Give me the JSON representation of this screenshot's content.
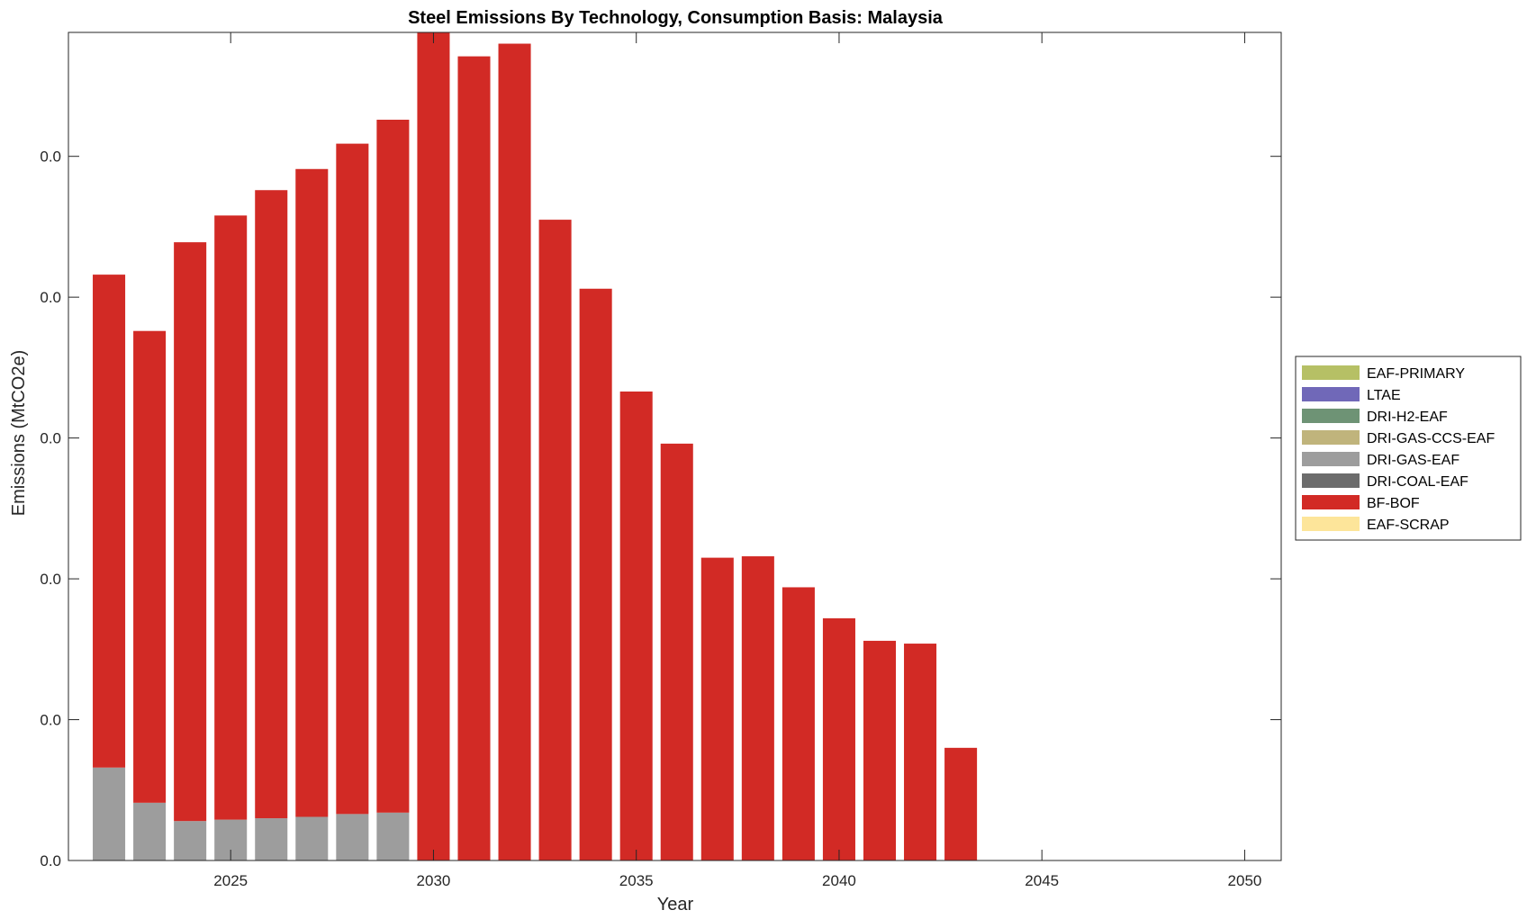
{
  "chart_data": {
    "type": "bar",
    "stacked": true,
    "title": "Steel Emissions By Technology, Consumption Basis: Malaysia",
    "xlabel": "Year",
    "ylabel": "Emissions (MtCO2e)",
    "x": [
      2022,
      2023,
      2024,
      2025,
      2026,
      2027,
      2028,
      2029,
      2030,
      2031,
      2032,
      2033,
      2034,
      2035,
      2036,
      2037,
      2038,
      2039,
      2040,
      2041,
      2042,
      2043
    ],
    "xlim": [
      2021,
      2050.9
    ],
    "xticks": [
      2025,
      2030,
      2035,
      2040,
      2045,
      2050
    ],
    "ylim": [
      0,
      0.0588
    ],
    "yticks": [
      0,
      0.01,
      0.02,
      0.03,
      0.04,
      0.05
    ],
    "ytick_labels": [
      "0.0",
      "0.0",
      "0.0",
      "0.0",
      "0.0",
      "0.0"
    ],
    "grid": false,
    "legend_position": "right",
    "series": [
      {
        "name": "EAF-PRIMARY",
        "color": "#b6c065",
        "values": [
          0,
          0,
          0,
          0,
          0,
          0,
          0,
          0,
          0,
          0,
          0,
          0,
          0,
          0,
          0,
          0,
          0,
          0,
          0,
          0,
          0,
          0
        ]
      },
      {
        "name": "LTAE",
        "color": "#7068b8",
        "values": [
          0,
          0,
          0,
          0,
          0,
          0,
          0,
          0,
          0,
          0,
          0,
          0,
          0,
          0,
          0,
          0,
          0,
          0,
          0,
          0,
          0,
          0
        ]
      },
      {
        "name": "DRI-H2-EAF",
        "color": "#6e9375",
        "values": [
          0,
          0,
          0,
          0,
          0,
          0,
          0,
          0,
          0,
          0,
          0,
          0,
          0,
          0,
          0,
          0,
          0,
          0,
          0,
          0,
          0,
          0
        ]
      },
      {
        "name": "DRI-GAS-CCS-EAF",
        "color": "#c0b47c",
        "values": [
          0,
          0,
          0,
          0,
          0,
          0,
          0,
          0,
          0,
          0,
          0,
          0,
          0,
          0,
          0,
          0,
          0,
          0,
          0,
          0,
          0,
          0
        ]
      },
      {
        "name": "DRI-GAS-EAF",
        "color": "#9d9d9d",
        "values": [
          0.0066,
          0.0041,
          0.0028,
          0.0029,
          0.003,
          0.0031,
          0.0033,
          0.0034,
          0,
          0,
          0,
          0,
          0,
          0,
          0,
          0,
          0,
          0,
          0,
          0,
          0,
          0
        ]
      },
      {
        "name": "DRI-COAL-EAF",
        "color": "#6c6c6c",
        "values": [
          0,
          0,
          0,
          0,
          0,
          0,
          0,
          0,
          0,
          0,
          0,
          0,
          0,
          0,
          0,
          0,
          0,
          0,
          0,
          0,
          0,
          0
        ]
      },
      {
        "name": "BF-BOF",
        "color": "#d22a25",
        "values": [
          0.035,
          0.0335,
          0.0411,
          0.0429,
          0.0446,
          0.046,
          0.0476,
          0.0492,
          0.0588,
          0.0571,
          0.058,
          0.0455,
          0.0406,
          0.0333,
          0.0296,
          0.0215,
          0.0216,
          0.0194,
          0.0172,
          0.0156,
          0.0154,
          0.008
        ]
      },
      {
        "name": "EAF-SCRAP",
        "color": "#fde59a",
        "values": [
          0,
          0,
          0,
          0,
          0,
          0,
          0,
          0,
          0,
          0,
          0,
          0,
          0,
          0,
          0,
          0,
          0,
          0,
          0,
          0,
          0,
          0
        ]
      }
    ]
  }
}
